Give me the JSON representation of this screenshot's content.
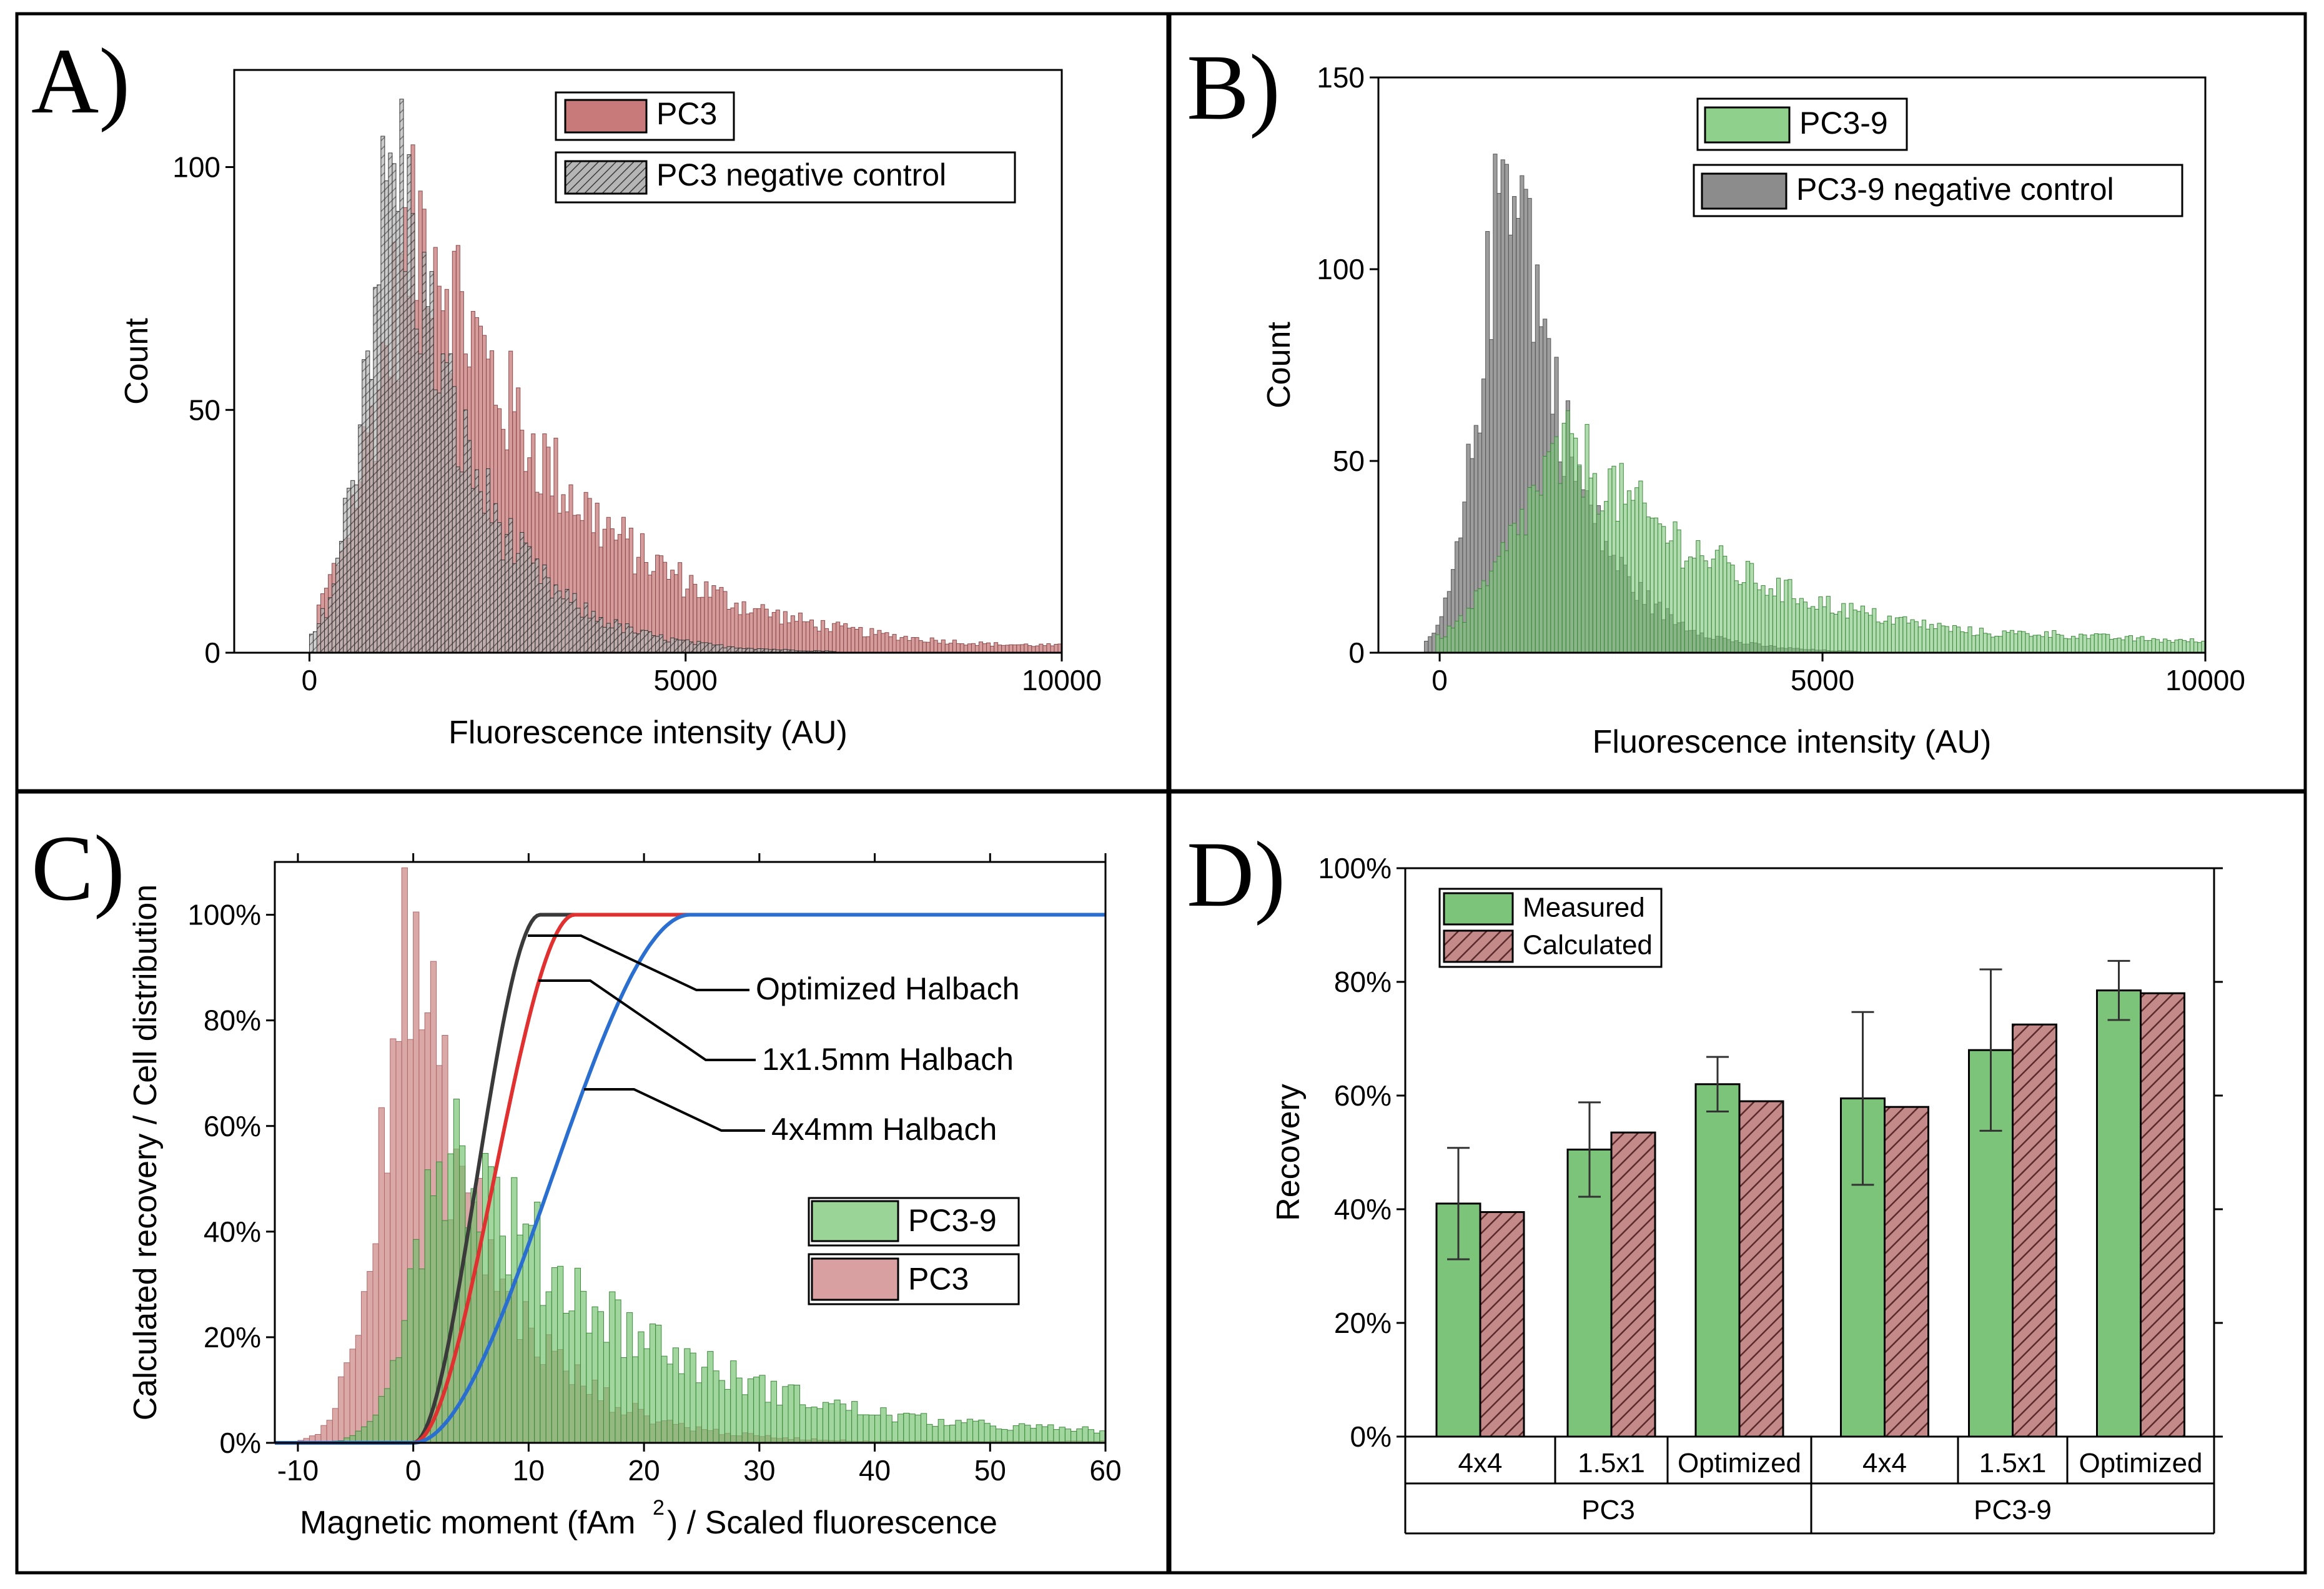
{
  "chart_data": [
    {
      "type": "histogram",
      "panel": "A)",
      "xlabel": "Fluorescence intensity (AU)",
      "ylabel": "Count",
      "xlim": [
        -1000,
        10000
      ],
      "ylim": [
        0,
        120
      ],
      "xticks": [
        0,
        5000,
        10000
      ],
      "xtick_labels": [
        "0",
        "5000",
        "10000"
      ],
      "yticks": [
        0,
        50,
        100
      ],
      "ytick_labels": [
        "0",
        "50",
        "100"
      ],
      "legend": [
        "PC3",
        "PC3 negative control"
      ],
      "legend_position": "top-right",
      "bin_width": 50,
      "series": [
        {
          "name": "PC3",
          "color": "#c87a7a",
          "style": "solid",
          "peak_x": 1600,
          "peak_count": 88,
          "rise_sigma": 700,
          "decay": 1900,
          "tail_level": 3.5,
          "start": 100,
          "end": 10000
        },
        {
          "name": "PC3 negative control",
          "color": "#7a7a7a",
          "style": "hatched",
          "peak_x": 1200,
          "peak_count": 100,
          "rise_sigma": 450,
          "decay": 1000,
          "tail_level": 0.6,
          "start": 0,
          "end": 7000
        }
      ]
    },
    {
      "type": "histogram",
      "panel": "B)",
      "xlabel": "Fluorescence intensity (AU)",
      "ylabel": "Count",
      "xlim": [
        -800,
        10000
      ],
      "ylim": [
        0,
        150
      ],
      "xticks": [
        0,
        5000,
        10000
      ],
      "xtick_labels": [
        "0",
        "5000",
        "10000"
      ],
      "yticks": [
        0,
        50,
        100,
        150
      ],
      "ytick_labels": [
        "0",
        "50",
        "100",
        "150"
      ],
      "legend": [
        "PC3-9",
        "PC3-9 negative control"
      ],
      "legend_position": "top-right",
      "bin_width": 50,
      "series": [
        {
          "name": "PC3-9",
          "color": "#7cc47a",
          "style": "solid",
          "peak_x": 1800,
          "peak_count": 52,
          "rise_sigma": 800,
          "decay": 2300,
          "tail_level": 5,
          "start": -50,
          "end": 10000
        },
        {
          "name": "PC3-9 negative control",
          "color": "#8c8c8c",
          "style": "solid",
          "peak_x": 1000,
          "peak_count": 135,
          "rise_sigma": 420,
          "decay": 750,
          "tail_level": 0.5,
          "start": -200,
          "end": 5500
        }
      ]
    },
    {
      "type": "histogram+line",
      "panel": "C)",
      "xlabel": "Magnetic moment (fAm",
      "xlabel_sup": "2",
      "xlabel_tail": ") / Scaled fluorescence",
      "ylabel": "Calculated recovery / Cell distribution",
      "xlim": [
        -12,
        60
      ],
      "ylim": [
        0,
        1.1
      ],
      "xticks": [
        -10,
        0,
        10,
        20,
        30,
        40,
        50,
        60
      ],
      "xtick_labels": [
        "-10",
        "0",
        "10",
        "20",
        "30",
        "40",
        "50",
        "60"
      ],
      "yticks": [
        0,
        0.2,
        0.4,
        0.6,
        0.8,
        1.0
      ],
      "ytick_labels": [
        "0%",
        "20%",
        "40%",
        "60%",
        "80%",
        "100%"
      ],
      "legend": [
        "PC3-9",
        "PC3"
      ],
      "legend_position": "right",
      "bin_width": 0.5,
      "histograms": [
        {
          "name": "PC3",
          "color": "#c87a7a",
          "peak_x": 0,
          "peak_value": 0.92,
          "rise_sigma": 3,
          "decay": 7,
          "tail_level": 0.01,
          "start": -10,
          "end": 60
        },
        {
          "name": "PC3-9",
          "color": "#6ec06a",
          "peak_x": 3,
          "peak_value": 0.58,
          "rise_sigma": 3,
          "decay": 16,
          "tail_level": 0.04,
          "start": -7,
          "end": 60
        }
      ],
      "curves": [
        {
          "name": "Optimized Halbach",
          "color": "#3a3a3a",
          "saturation_x": 11
        },
        {
          "name": "1x1.5mm Halbach",
          "color": "#e03030",
          "saturation_x": 14
        },
        {
          "name": "4x4mm Halbach",
          "color": "#2a6fd0",
          "saturation_x": 24
        }
      ],
      "annotations": [
        "Optimized Halbach",
        "1x1.5mm Halbach",
        "4x4mm Halbach"
      ]
    },
    {
      "type": "bar",
      "panel": "D)",
      "ylabel": "Recovery",
      "ylim": [
        0,
        1.0
      ],
      "yticks": [
        0,
        0.2,
        0.4,
        0.6,
        0.8,
        1.0
      ],
      "ytick_labels": [
        "0%",
        "20%",
        "40%",
        "60%",
        "80%",
        "100%"
      ],
      "legend": [
        "Measured",
        "Calculated"
      ],
      "legend_position": "top-left",
      "groups": [
        "PC3",
        "PC3-9"
      ],
      "categories": [
        "4x4",
        "1.5x1",
        "Optimized",
        "4x4",
        "1.5x1",
        "Optimized"
      ],
      "series": [
        {
          "name": "Measured",
          "color": "#7cc47a",
          "values": [
            0.41,
            0.505,
            0.62,
            0.595,
            0.68,
            0.785
          ],
          "errors": [
            0.098,
            0.083,
            0.048,
            0.152,
            0.142,
            0.052
          ]
        },
        {
          "name": "Calculated",
          "color": "#a65a5a",
          "style": "hatched",
          "values": [
            0.395,
            0.535,
            0.59,
            0.58,
            0.725,
            0.78
          ]
        }
      ]
    }
  ]
}
